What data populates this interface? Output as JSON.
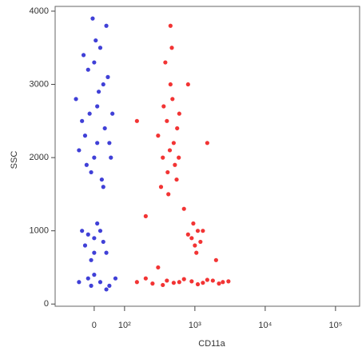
{
  "chart_data": {
    "type": "scatter",
    "x_label": "CD11a",
    "y_label": "SSC",
    "xlim": [
      -130,
      220000
    ],
    "xticks": [
      0,
      {
        "value": 100,
        "label": "10²"
      },
      {
        "value": 1000,
        "label": "10³"
      },
      {
        "value": 10000,
        "label": "10⁴"
      },
      {
        "value": 100000,
        "label": "10⁵"
      }
    ],
    "ylim": [
      -30,
      4065
    ],
    "yticks": [
      0,
      1000,
      2000,
      3000,
      4000
    ],
    "series": [
      {
        "color": "#1f1fd0",
        "x": [
          -40,
          10,
          30,
          -20,
          50,
          0,
          -60,
          20,
          40,
          -10,
          60,
          -30,
          15,
          0,
          -50,
          35,
          5,
          -25,
          45,
          -15,
          25,
          -35,
          55,
          10,
          -5,
          30,
          0,
          -30,
          20,
          40,
          -10,
          10,
          -40,
          30,
          0,
          -20,
          -20,
          20,
          50,
          -50,
          0,
          70,
          40,
          -10
        ],
        "y": [
          2500,
          2700,
          3000,
          3200,
          2200,
          2000,
          2800,
          3500,
          3800,
          1800,
          2600,
          2300,
          2900,
          3300,
          2100,
          2400,
          3600,
          1900,
          3100,
          2600,
          1700,
          3400,
          2000,
          2200,
          3900,
          1600,
          900,
          800,
          1000,
          700,
          600,
          1100,
          1000,
          850,
          700,
          950,
          350,
          300,
          250,
          300,
          400,
          350,
          200,
          250
        ]
      },
      {
        "color": "#f01010",
        "x": [
          400,
          500,
          350,
          450,
          550,
          300,
          600,
          420,
          480,
          380,
          520,
          440,
          360,
          560,
          410,
          470,
          330,
          590,
          450,
          900,
          1100,
          1000,
          1200,
          950,
          1050,
          800,
          1300,
          150,
          250,
          400,
          600,
          900,
          1300,
          1800,
          2500,
          200,
          350,
          700,
          1100,
          1500,
          2200,
          3000,
          500,
          200,
          800,
          1500,
          300,
          2000,
          700,
          150
        ],
        "y": [
          2500,
          2200,
          2000,
          3000,
          1700,
          2300,
          2600,
          1500,
          2800,
          3300,
          1900,
          2100,
          2700,
          2400,
          1800,
          3500,
          1600,
          2000,
          3800,
          900,
          1000,
          800,
          850,
          1100,
          700,
          950,
          1000,
          300,
          280,
          320,
          300,
          310,
          290,
          320,
          300,
          350,
          260,
          340,
          270,
          330,
          280,
          310,
          290,
          1200,
          3000,
          2200,
          500,
          600,
          1300,
          2500
        ]
      }
    ]
  }
}
